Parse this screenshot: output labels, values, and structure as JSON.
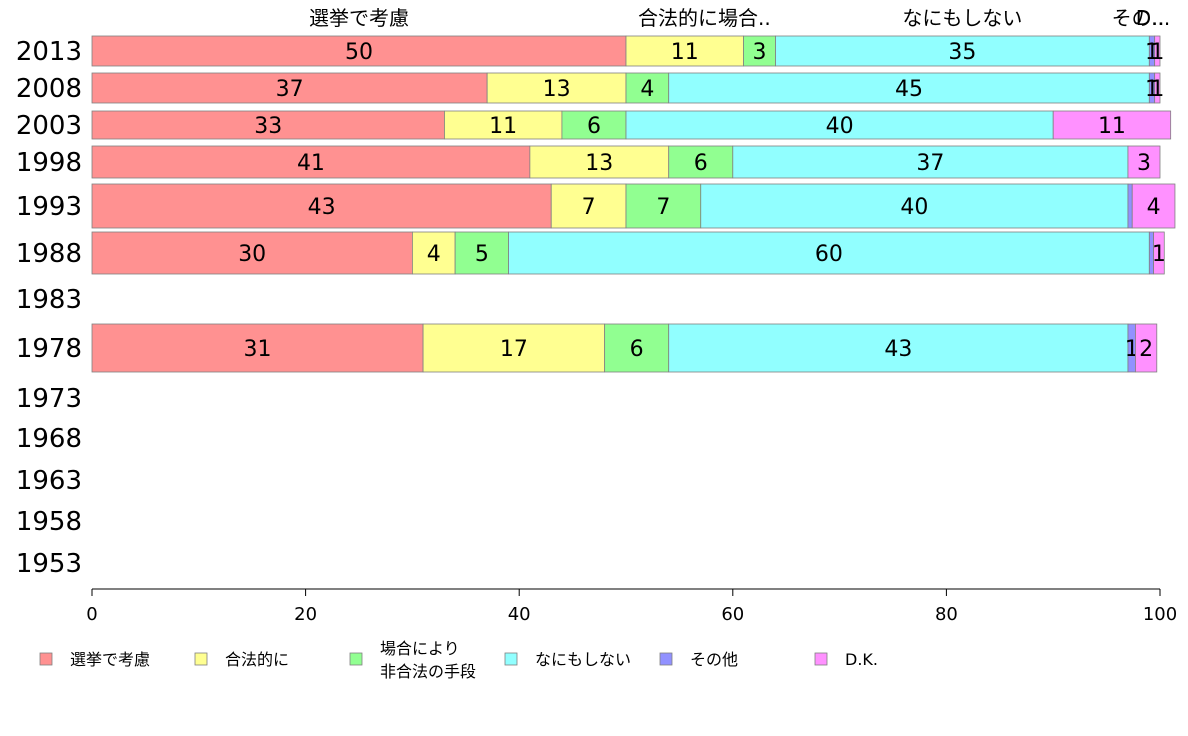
{
  "chart_data": {
    "type": "bar",
    "orientation": "horizontal",
    "stacked": true,
    "categories": [
      "2013",
      "2008",
      "2003",
      "1998",
      "1993",
      "1988",
      "1983",
      "1978",
      "1973",
      "1968",
      "1963",
      "1958",
      "1953"
    ],
    "series": [
      {
        "name": "選挙で考慮",
        "color": "#ff9191",
        "values": [
          50,
          37,
          33,
          41,
          43,
          30,
          null,
          31,
          null,
          null,
          null,
          null,
          null
        ]
      },
      {
        "name": "合法的に",
        "color": "#ffff91",
        "values": [
          11,
          13,
          11,
          13,
          7,
          4,
          null,
          17,
          null,
          null,
          null,
          null,
          null
        ]
      },
      {
        "name": "場合により\n非合法の手段",
        "color": "#91ff91",
        "values": [
          3,
          4,
          6,
          6,
          7,
          5,
          null,
          6,
          null,
          null,
          null,
          null,
          null
        ]
      },
      {
        "name": "なにもしない",
        "color": "#91ffff",
        "values": [
          35,
          45,
          40,
          37,
          40,
          60,
          null,
          43,
          null,
          null,
          null,
          null,
          null
        ]
      },
      {
        "name": "その他",
        "color": "#9191ff",
        "values": [
          0.5,
          0.5,
          0,
          0,
          0.4,
          0.4,
          null,
          0.7,
          null,
          null,
          null,
          null,
          null
        ]
      },
      {
        "name": "D.K.",
        "color": "#ff91ff",
        "values": [
          0.5,
          0.5,
          11,
          3,
          4,
          1,
          null,
          2,
          null,
          null,
          null,
          null,
          null
        ]
      }
    ],
    "data_labels": [
      [
        "50",
        "11",
        "3",
        "35",
        "1",
        "1"
      ],
      [
        "37",
        "13",
        "4",
        "45",
        "1",
        "1"
      ],
      [
        "33",
        "11",
        "6",
        "40",
        "",
        "11"
      ],
      [
        "41",
        "13",
        "6",
        "37",
        "",
        "3"
      ],
      [
        "43",
        "7",
        "7",
        "40",
        "",
        "4"
      ],
      [
        "30",
        "4",
        "5",
        "60",
        "",
        "1"
      ],
      [
        "",
        "",
        "",
        "",
        "",
        ""
      ],
      [
        "31",
        "17",
        "6",
        "43",
        "1",
        "2"
      ],
      [
        "",
        "",
        "",
        "",
        "",
        ""
      ],
      [
        "",
        "",
        "",
        "",
        "",
        ""
      ],
      [
        "",
        "",
        "",
        "",
        "",
        ""
      ],
      [
        "",
        "",
        "",
        "",
        "",
        ""
      ],
      [
        "",
        "",
        "",
        "",
        "",
        ""
      ]
    ],
    "top_labels": [
      "選挙で考慮",
      "合法的に場合..",
      "なにもしない",
      "その..",
      "D..."
    ],
    "xlim": [
      0,
      100
    ],
    "xticks": [
      "0",
      "20",
      "40",
      "60",
      "80",
      "100"
    ],
    "grid": false,
    "legend_position": "bottom"
  }
}
